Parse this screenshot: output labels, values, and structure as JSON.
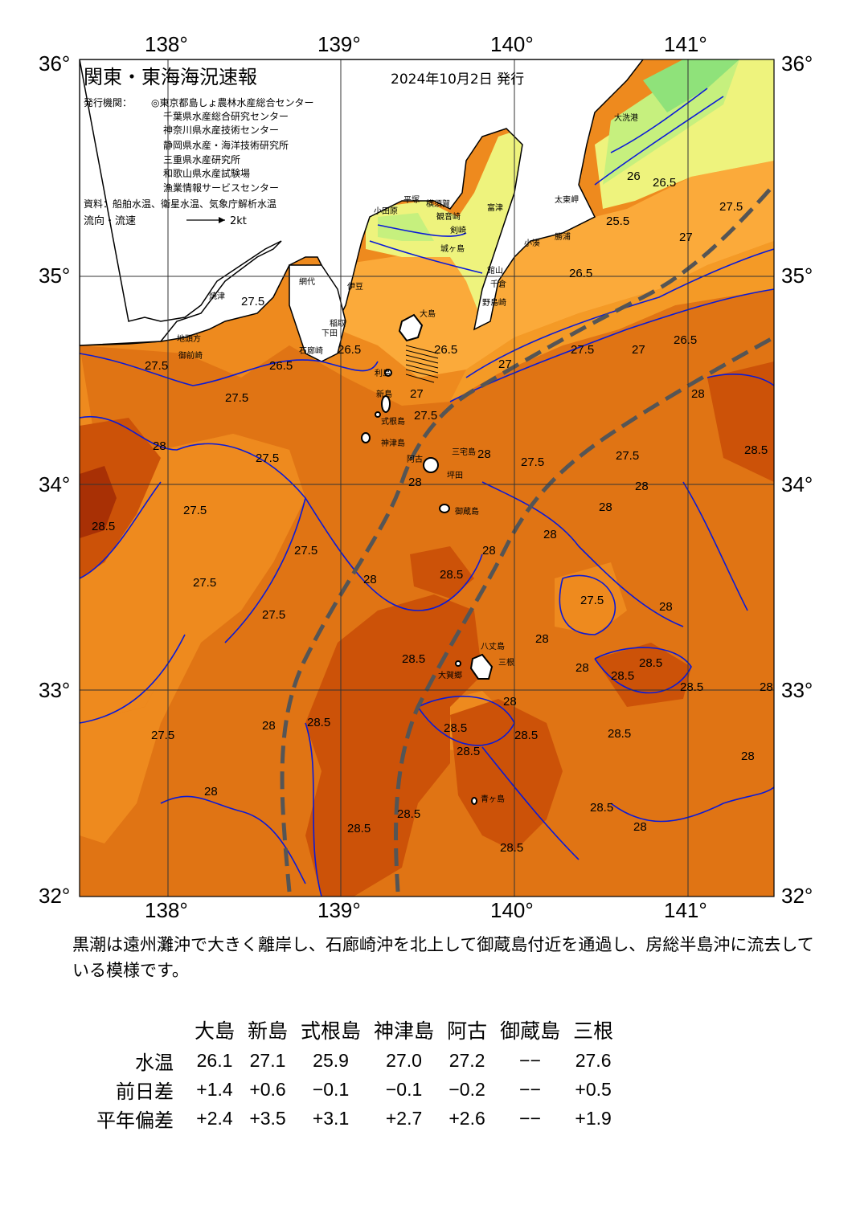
{
  "header": {
    "title": "関東・東海海況速報",
    "date": "2024年10月2日 発行",
    "issuer_label": "発行機関：",
    "issuers": [
      "◎東京都島しょ農林水産総合センター",
      "千葉県水産総合研究センター",
      "神奈川県水産技術センター",
      "静岡県水産・海洋技術研究所",
      "三重県水産研究所",
      "和歌山県水産試験場",
      "漁業情報サービスセンター"
    ],
    "source": "資料：船舶水温、衛星水温、気象庁解析水温",
    "flow_label": "流向・流速",
    "flow_scale": "2kt"
  },
  "axes": {
    "lon_labels": [
      "138°",
      "139°",
      "140°",
      "141°"
    ],
    "lat_labels": [
      "36°",
      "35°",
      "34°",
      "33°",
      "32°"
    ]
  },
  "colors": {
    "t25": "#8fe27a",
    "t25_5": "#c6f07e",
    "t26": "#eef37d",
    "t26_5": "#fbaa3a",
    "t27": "#f49a26",
    "t27_5": "#ee8a1e",
    "t28": "#e07414",
    "t28_5": "#cc5208",
    "t29": "#a83005",
    "land": "#ffffff",
    "isotherm": "#0a1ad8",
    "kuroshio": "#555555"
  },
  "place_names": [
    "大洗港",
    "太東岬",
    "勝浦",
    "小湊",
    "富津",
    "観音崎",
    "城ヶ島",
    "剣崎",
    "平塚",
    "小田原",
    "横須賀",
    "館山",
    "千倉",
    "野島崎",
    "伊豆",
    "網代",
    "大島",
    "石廊崎",
    "下田",
    "稲取",
    "御前崎",
    "焼津",
    "地頭方",
    "利島",
    "新島",
    "式根島",
    "神津島",
    "三宅島",
    "坪田",
    "阿古",
    "御蔵島",
    "八丈島",
    "三根",
    "大賀郷",
    "青ヶ島"
  ],
  "contour_labels": [
    "25",
    "25.5",
    "26",
    "26.5",
    "27",
    "27.5",
    "28",
    "28.5"
  ],
  "summary": "黒潮は遠州灘沖で大きく離岸し、石廊崎沖を北上して御蔵島付近を通過し、房総半島沖に流去している模様です。",
  "table": {
    "stations": [
      "大島",
      "新島",
      "式根島",
      "神津島",
      "阿古",
      "御蔵島",
      "三根"
    ],
    "rows": [
      {
        "label": "水温",
        "values": [
          "26.1",
          "27.1",
          "25.9",
          "27.0",
          "27.2",
          "−−",
          "27.6"
        ]
      },
      {
        "label": "前日差",
        "values": [
          "+1.4",
          "+0.6",
          "−0.1",
          "−0.1",
          "−0.2",
          "−−",
          "+0.5"
        ]
      },
      {
        "label": "平年偏差",
        "values": [
          "+2.4",
          "+3.5",
          "+3.1",
          "+2.7",
          "+2.6",
          "−−",
          "+1.9"
        ]
      }
    ]
  }
}
